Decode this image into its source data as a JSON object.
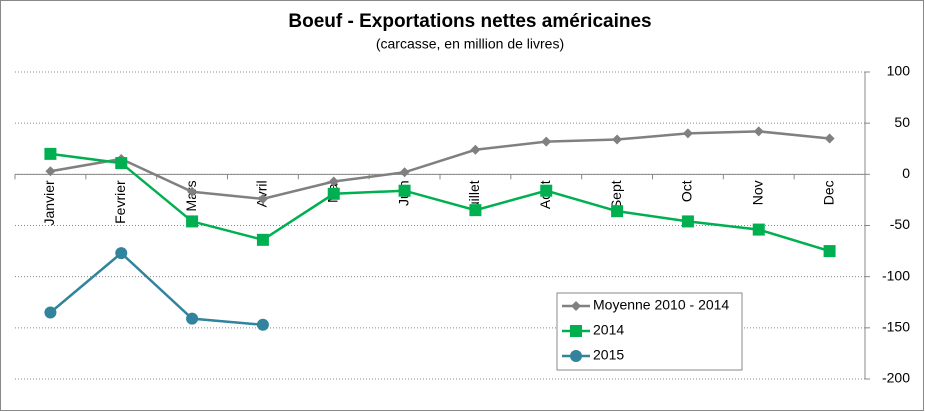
{
  "chart_data": {
    "type": "line",
    "title": "Boeuf  - Exportations nettes américaines",
    "subtitle": "(carcasse, en million de livres)",
    "categories": [
      "Janvier",
      "Fevrier",
      "Mars",
      "Avril",
      "Mai",
      "Juin",
      "Juillet",
      "Aout",
      "Sept",
      "Oct",
      "Nov",
      "Dec"
    ],
    "series": [
      {
        "name": "Moyenne 2010 - 2014",
        "color": "#808080",
        "marker": "diamond",
        "values": [
          3,
          15,
          -17,
          -24,
          -7,
          2,
          24,
          32,
          34,
          40,
          42,
          35
        ]
      },
      {
        "name": "2014",
        "color": "#00b050",
        "marker": "square",
        "values": [
          20,
          11,
          -46,
          -64,
          -19,
          -16,
          -35,
          -16,
          -36,
          -46,
          -54,
          -75
        ]
      },
      {
        "name": "2015",
        "color": "#31849b",
        "marker": "circle",
        "values": [
          -135,
          -77,
          -141,
          -147,
          null,
          null,
          null,
          null,
          null,
          null,
          null,
          null
        ]
      }
    ],
    "ylim": [
      -200,
      100
    ],
    "yticks": [
      100,
      50,
      0,
      -50,
      -100,
      -150,
      -200
    ],
    "grid": true,
    "legend": "lower right"
  }
}
